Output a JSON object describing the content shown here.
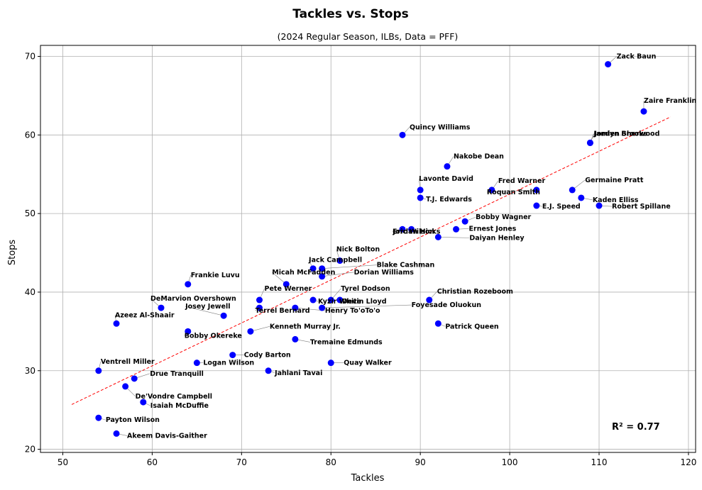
{
  "chart_data": {
    "type": "scatter",
    "title": "Tackles vs. Stops",
    "subtitle": "(2024 Regular Season, ILBs, Data = PFF)",
    "xlabel": "Tackles",
    "ylabel": "Stops",
    "xlim": [
      47.5,
      120.8
    ],
    "ylim": [
      19.6,
      71.4
    ],
    "xticks": [
      50,
      60,
      70,
      80,
      90,
      100,
      110,
      120
    ],
    "yticks": [
      20,
      30,
      40,
      50,
      60,
      70
    ],
    "grid": true,
    "point_color": "#0000ff",
    "trendline": {
      "color": "#ff0000",
      "style": "dashed",
      "x_start": 51,
      "x_end": 118,
      "y_start": 25.7,
      "y_end": 62.3
    },
    "annotation": "R² = 0.77",
    "points": [
      {
        "name": "Zack Baun",
        "x": 111,
        "y": 69
      },
      {
        "name": "Zaire Franklin",
        "x": 115,
        "y": 63
      },
      {
        "name": "Jordyn Brooks",
        "x": 109,
        "y": 59
      },
      {
        "name": "Jamien Sherwood",
        "x": 109,
        "y": 59
      },
      {
        "name": "Quincy Williams",
        "x": 88,
        "y": 60
      },
      {
        "name": "Nakobe Dean",
        "x": 93,
        "y": 56
      },
      {
        "name": "Lavonte David",
        "x": 90,
        "y": 53
      },
      {
        "name": "T.J. Edwards",
        "x": 90,
        "y": 52
      },
      {
        "name": "Fred Warner",
        "x": 98,
        "y": 53
      },
      {
        "name": "Germaine Pratt",
        "x": 107,
        "y": 53
      },
      {
        "name": "Roquan Smith",
        "x": 103,
        "y": 53
      },
      {
        "name": "Kaden Elliss",
        "x": 108,
        "y": 52
      },
      {
        "name": "E.J. Speed",
        "x": 103,
        "y": 51
      },
      {
        "name": "Robert Spillane",
        "x": 110,
        "y": 51
      },
      {
        "name": "Bobby Wagner",
        "x": 95,
        "y": 49
      },
      {
        "name": "Ernest Jones",
        "x": 94,
        "y": 48
      },
      {
        "name": "Eric Wilson",
        "x": 88,
        "y": 48
      },
      {
        "name": "Jordan Hicks",
        "x": 89,
        "y": 48
      },
      {
        "name": "Daiyan Henley",
        "x": 92,
        "y": 47
      },
      {
        "name": "Nick Bolton",
        "x": 81,
        "y": 44
      },
      {
        "name": "Blake Cashman",
        "x": 79,
        "y": 43
      },
      {
        "name": "Jack Campbell",
        "x": 78,
        "y": 43
      },
      {
        "name": "Dorian Williams",
        "x": 79,
        "y": 42
      },
      {
        "name": "Micah McFadden",
        "x": 75,
        "y": 41
      },
      {
        "name": "Frankie Luvu",
        "x": 64,
        "y": 41
      },
      {
        "name": "Pete Werner",
        "x": 72,
        "y": 39
      },
      {
        "name": "Tyrel Dodson",
        "x": 80,
        "y": 39
      },
      {
        "name": "Kyzir White",
        "x": 78,
        "y": 39
      },
      {
        "name": "Devin Lloyd",
        "x": 81,
        "y": 39
      },
      {
        "name": "Christian Rozeboom",
        "x": 91,
        "y": 39
      },
      {
        "name": "DeMarvion Overshown",
        "x": 61,
        "y": 38
      },
      {
        "name": "Terrel Bernard",
        "x": 72,
        "y": 38
      },
      {
        "name": "Henry To'oTo'o",
        "x": 76,
        "y": 38
      },
      {
        "name": "Foyesade Oluokun",
        "x": 79,
        "y": 38
      },
      {
        "name": "Josey Jewell",
        "x": 68,
        "y": 37
      },
      {
        "name": "Azeez Al-Shaair",
        "x": 56,
        "y": 36
      },
      {
        "name": "Patrick Queen",
        "x": 92,
        "y": 36
      },
      {
        "name": "Kenneth Murray Jr.",
        "x": 71,
        "y": 35
      },
      {
        "name": "Bobby Okereke",
        "x": 64,
        "y": 35
      },
      {
        "name": "Tremaine Edmunds",
        "x": 76,
        "y": 34
      },
      {
        "name": "Cody Barton",
        "x": 69,
        "y": 32
      },
      {
        "name": "Logan Wilson",
        "x": 65,
        "y": 31
      },
      {
        "name": "Quay Walker",
        "x": 80,
        "y": 31
      },
      {
        "name": "Ventrell Miller",
        "x": 54,
        "y": 30
      },
      {
        "name": "Jahlani Tavai",
        "x": 73,
        "y": 30
      },
      {
        "name": "Drue Tranquill",
        "x": 58,
        "y": 29
      },
      {
        "name": "De'Vondre Campbell",
        "x": 57,
        "y": 28
      },
      {
        "name": "Isaiah McDuffie",
        "x": 59,
        "y": 26
      },
      {
        "name": "Payton Wilson",
        "x": 54,
        "y": 24
      },
      {
        "name": "Akeem Davis-Gaither",
        "x": 56,
        "y": 22
      }
    ]
  }
}
